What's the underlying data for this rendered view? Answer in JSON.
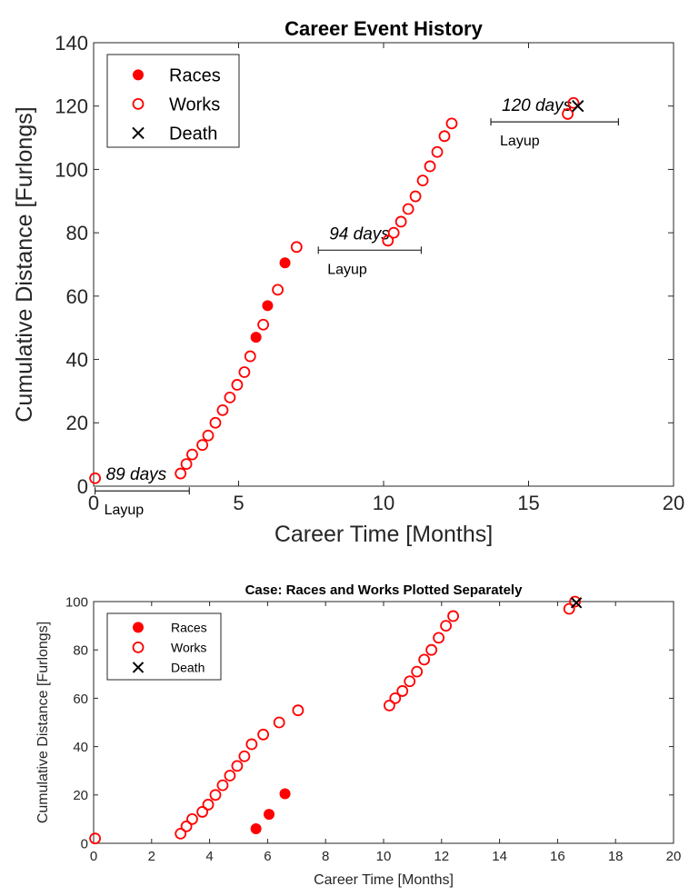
{
  "chart_data": [
    {
      "type": "scatter",
      "title": "Career Event History",
      "xlabel": "Career Time [Months]",
      "ylabel": "Cumulative Distance [Furlongs]",
      "xlim": [
        0,
        20
      ],
      "ylim": [
        0,
        140
      ],
      "xticks": [
        "0",
        "5",
        "10",
        "15",
        "20"
      ],
      "yticks": [
        "0",
        "20",
        "40",
        "60",
        "80",
        "100",
        "120",
        "140"
      ],
      "legend_position": "top-left",
      "grid": false,
      "colors": {
        "races": "#ff0000",
        "works": "#ff0000",
        "death": "#000000"
      },
      "series": [
        {
          "name": "Races",
          "marker": "filled-circle",
          "x": [
            5.6,
            6.0,
            6.6
          ],
          "y": [
            47,
            57,
            70.5
          ]
        },
        {
          "name": "Works",
          "marker": "open-circle",
          "x": [
            0.05,
            3.0,
            3.2,
            3.4,
            3.75,
            3.95,
            4.2,
            4.45,
            4.7,
            4.95,
            5.2,
            5.4,
            5.85,
            6.35,
            7.0,
            10.15,
            10.35,
            10.6,
            10.85,
            11.1,
            11.35,
            11.6,
            11.85,
            12.1,
            12.35,
            16.35,
            16.55
          ],
          "y": [
            2.5,
            4,
            7,
            10,
            13,
            16,
            20,
            24,
            28,
            32,
            36,
            41,
            51,
            62,
            75.5,
            77.5,
            80,
            83.5,
            87.5,
            91.5,
            96.5,
            101,
            105.5,
            110.5,
            114.5,
            117.5,
            121
          ]
        },
        {
          "name": "Death",
          "marker": "x",
          "x": [
            16.7
          ],
          "y": [
            120
          ]
        }
      ],
      "annotations": [
        {
          "days": "89 days",
          "label": "Layup",
          "x_start": 0.05,
          "x_end": 3.3,
          "y": -1.5
        },
        {
          "days": "94 days",
          "label": "Layup",
          "x_start": 7.75,
          "x_end": 11.3,
          "y": 74.5
        },
        {
          "days": "120 days",
          "label": "Layup",
          "x_start": 13.7,
          "x_end": 18.1,
          "y": 115
        }
      ]
    },
    {
      "type": "scatter",
      "title": "Case: Races and Works Plotted Separately",
      "xlabel": "Career Time [Months]",
      "ylabel": "Cumulative Distance [Furlongs]",
      "xlim": [
        0,
        20
      ],
      "ylim": [
        0,
        100
      ],
      "xticks": [
        "0",
        "2",
        "4",
        "6",
        "8",
        "10",
        "12",
        "14",
        "16",
        "18",
        "20"
      ],
      "yticks": [
        "0",
        "20",
        "40",
        "60",
        "80",
        "100"
      ],
      "legend_position": "top-left",
      "grid": false,
      "colors": {
        "races": "#ff0000",
        "works": "#ff0000",
        "death": "#000000"
      },
      "series": [
        {
          "name": "Races",
          "marker": "filled-circle",
          "x": [
            5.6,
            6.05,
            6.6
          ],
          "y": [
            6,
            12,
            20.5
          ]
        },
        {
          "name": "Works",
          "marker": "open-circle",
          "x": [
            0.05,
            3.0,
            3.2,
            3.4,
            3.75,
            3.95,
            4.2,
            4.45,
            4.7,
            4.95,
            5.2,
            5.45,
            5.85,
            6.4,
            7.05,
            10.2,
            10.4,
            10.65,
            10.9,
            11.15,
            11.4,
            11.65,
            11.9,
            12.15,
            12.4,
            16.4,
            16.6
          ],
          "y": [
            2,
            4,
            7,
            10,
            13,
            16,
            20,
            24,
            28,
            32,
            36,
            41,
            45,
            50,
            55,
            57,
            60,
            63,
            67,
            71,
            76,
            80,
            85,
            90,
            94,
            97,
            100
          ]
        },
        {
          "name": "Death",
          "marker": "x",
          "x": [
            16.65
          ],
          "y": [
            99.5
          ]
        }
      ],
      "annotations": []
    }
  ]
}
